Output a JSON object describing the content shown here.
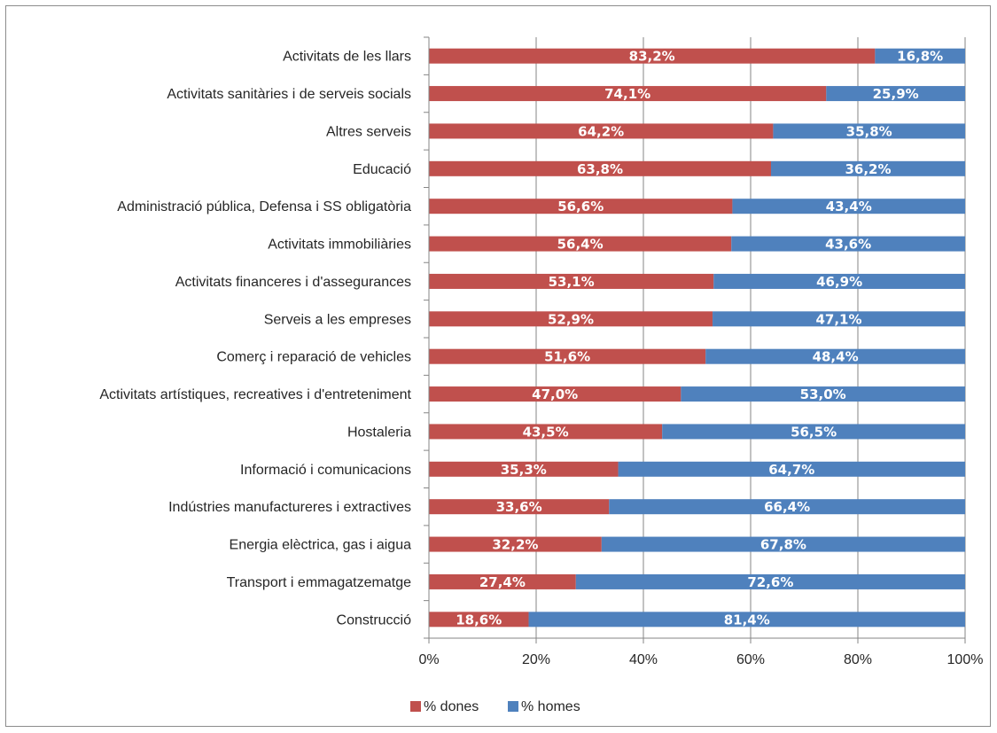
{
  "chart_data": {
    "type": "bar",
    "orientation": "horizontal",
    "stacked": true,
    "categories": [
      "Activitats de les llars",
      "Activitats sanitàries i de serveis socials",
      "Altres serveis",
      "Educació",
      "Administració pública, Defensa i SS obligatòria",
      "Activitats immobiliàries",
      "Activitats financeres i d'assegurances",
      "Serveis a les empreses",
      "Comerç i reparació de vehicles",
      "Activitats artístiques, recreatives i d'entreteniment",
      "Hostaleria",
      "Informació i comunicacions",
      "Indústries manufactureres i extractives",
      "Energia elèctrica, gas i aigua",
      "Transport i emmagatzematge",
      "Construcció"
    ],
    "series": [
      {
        "name": "% dones",
        "color": "#c0504d",
        "values": [
          83.2,
          74.1,
          64.2,
          63.8,
          56.6,
          56.4,
          53.1,
          52.9,
          51.6,
          47.0,
          43.5,
          35.3,
          33.6,
          32.2,
          27.4,
          18.6
        ],
        "labels": [
          "83,2%",
          "74,1%",
          "64,2%",
          "63,8%",
          "56,6%",
          "56,4%",
          "53,1%",
          "52,9%",
          "51,6%",
          "47,0%",
          "43,5%",
          "35,3%",
          "33,6%",
          "32,2%",
          "27,4%",
          "18,6%"
        ]
      },
      {
        "name": "% homes",
        "color": "#4f81bd",
        "values": [
          16.8,
          25.9,
          35.8,
          36.2,
          43.4,
          43.6,
          46.9,
          47.1,
          48.4,
          53.0,
          56.5,
          64.7,
          66.4,
          67.8,
          72.6,
          81.4
        ],
        "labels": [
          "16,8%",
          "25,9%",
          "35,8%",
          "36,2%",
          "43,4%",
          "43,6%",
          "46,9%",
          "47,1%",
          "48,4%",
          "53,0%",
          "56,5%",
          "64,7%",
          "66,4%",
          "67,8%",
          "72,6%",
          "81,4%"
        ]
      }
    ],
    "x_ticks": [
      "0%",
      "20%",
      "40%",
      "60%",
      "80%",
      "100%"
    ],
    "xlim": [
      0,
      100
    ],
    "grid": "vertical",
    "legend": "bottom-center"
  }
}
